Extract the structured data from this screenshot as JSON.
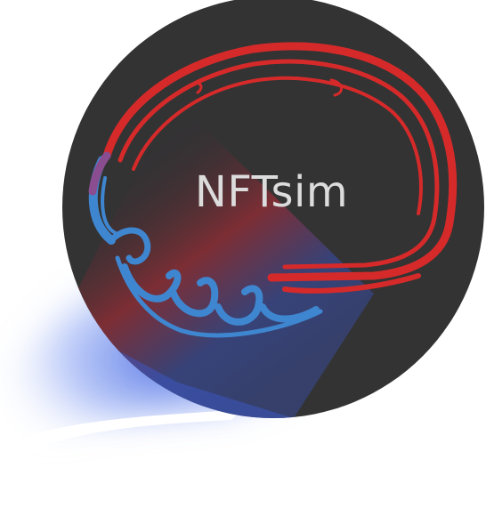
{
  "logo": {
    "title": "NFTsim",
    "icon": "brain-outline-icon"
  },
  "colors": {
    "background": "#ffffff",
    "disc": "#333333",
    "title": "#dcdcdc",
    "red": "#d62a2a",
    "blue": "#3f86d0",
    "glow": "#4a6fe0"
  }
}
